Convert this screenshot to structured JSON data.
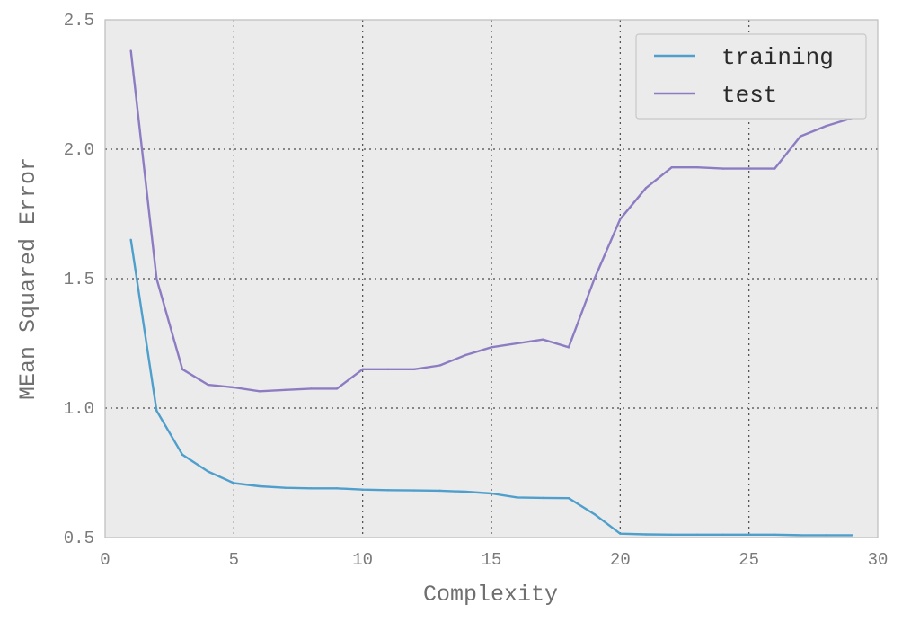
{
  "chart_data": {
    "type": "line",
    "title": "",
    "xlabel": "Complexity",
    "ylabel": "MEan Squared Error",
    "xlim": [
      0,
      30
    ],
    "ylim": [
      0.5,
      2.5
    ],
    "xticks": [
      0,
      5,
      10,
      15,
      20,
      25,
      30
    ],
    "xtick_labels": [
      "0",
      "5",
      "10",
      "15",
      "20",
      "25",
      "30"
    ],
    "yticks": [
      0.5,
      1.0,
      1.5,
      2.0,
      2.5
    ],
    "ytick_labels": [
      "0.5",
      "1.0",
      "1.5",
      "2.0",
      "2.5"
    ],
    "grid": true,
    "legend_position": "top-right",
    "background_color": "#ebebeb",
    "series": [
      {
        "name": "training",
        "color": "#4e9fcc",
        "x": [
          1,
          2,
          3,
          4,
          5,
          6,
          7,
          8,
          9,
          10,
          11,
          12,
          13,
          14,
          15,
          16,
          17,
          18,
          19,
          20,
          21,
          22,
          23,
          24,
          25,
          26,
          27,
          28,
          29
        ],
        "values": [
          1.65,
          0.99,
          0.82,
          0.755,
          0.71,
          0.698,
          0.692,
          0.69,
          0.69,
          0.685,
          0.683,
          0.682,
          0.681,
          0.677,
          0.67,
          0.655,
          0.653,
          0.652,
          0.59,
          0.515,
          0.512,
          0.511,
          0.511,
          0.511,
          0.511,
          0.511,
          0.509,
          0.509,
          0.509
        ]
      },
      {
        "name": "test",
        "color": "#8e7cc3",
        "x": [
          1,
          2,
          3,
          4,
          5,
          6,
          7,
          8,
          9,
          10,
          11,
          12,
          13,
          14,
          15,
          16,
          17,
          18,
          19,
          20,
          21,
          22,
          23,
          24,
          25,
          26,
          27,
          28,
          29
        ],
        "values": [
          2.38,
          1.5,
          1.15,
          1.09,
          1.08,
          1.065,
          1.07,
          1.075,
          1.075,
          1.15,
          1.15,
          1.15,
          1.165,
          1.205,
          1.235,
          1.25,
          1.265,
          1.235,
          1.5,
          1.73,
          1.85,
          1.93,
          1.93,
          1.925,
          1.925,
          1.925,
          2.05,
          2.09,
          2.12
        ]
      }
    ]
  }
}
